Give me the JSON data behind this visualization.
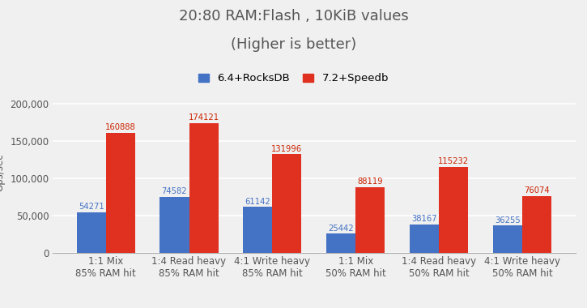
{
  "title_line1": "20:80 RAM:Flash , 10KiB values",
  "title_line2": "(Higher is better)",
  "ylabel": "Ops/sec",
  "categories": [
    "1:1 Mix\n85% RAM hit",
    "1:4 Read heavy\n85% RAM hit",
    "4:1 Write heavy\n85% RAM hit",
    "1:1 Mix\n50% RAM hit",
    "1:4 Read heavy\n50% RAM hit",
    "4:1 Write heavy\n50% RAM hit"
  ],
  "series": [
    {
      "label": "6.4+RocksDB",
      "color": "#4472C4",
      "values": [
        54271,
        74582,
        61142,
        25442,
        38167,
        36255
      ]
    },
    {
      "label": "7.2+Speedb",
      "color": "#E03020",
      "values": [
        160888,
        174121,
        131996,
        88119,
        115232,
        76074
      ]
    }
  ],
  "ylim": [
    0,
    215000
  ],
  "yticks": [
    0,
    50000,
    100000,
    150000,
    200000
  ],
  "ytick_labels": [
    "0",
    "50,000",
    "100,000",
    "150,000",
    "200,000"
  ],
  "bar_width": 0.35,
  "background_color": "#f0f0f0",
  "grid_color": "#ffffff",
  "title_fontsize": 13,
  "axis_label_fontsize": 8.5,
  "legend_fontsize": 9.5,
  "value_label_fontsize": 7.2,
  "title_color": "#555555",
  "blue_label_color": "#4472C4",
  "red_label_color": "#CC2200"
}
